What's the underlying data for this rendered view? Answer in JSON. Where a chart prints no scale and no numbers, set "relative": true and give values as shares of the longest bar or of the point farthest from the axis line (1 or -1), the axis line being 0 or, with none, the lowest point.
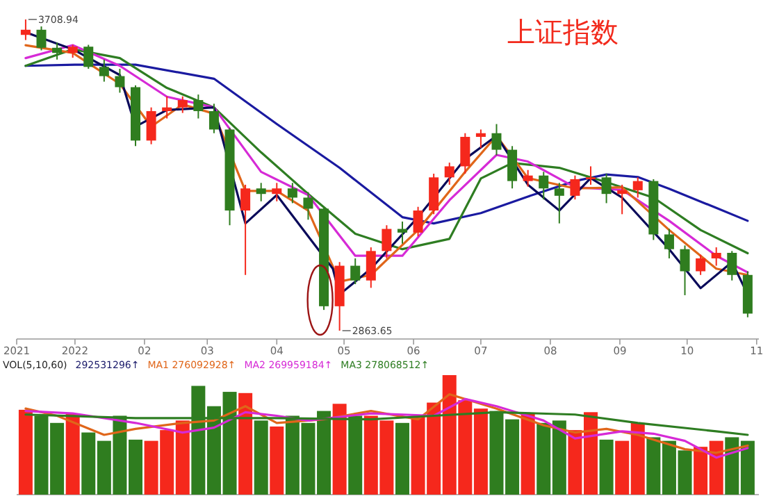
{
  "chart_data": [
    {
      "type": "candlestick",
      "title": "上证指数",
      "tick_labels": "x",
      "xlim": [
        "2021-12-06",
        "2022-11-02"
      ],
      "xticks": [
        {
          "value": "2021-12-06",
          "label": "2021"
        },
        {
          "value": "2022-01-01",
          "label": "2022"
        },
        {
          "value": "2022-02-01",
          "label": "02"
        },
        {
          "value": "2022-03-01",
          "label": "03"
        },
        {
          "value": "2022-04-01",
          "label": "04"
        },
        {
          "value": "2022-05-01",
          "label": "05"
        },
        {
          "value": "2022-06-01",
          "label": "06"
        },
        {
          "value": "2022-07-01",
          "label": "07"
        },
        {
          "value": "2022-08-01",
          "label": "08"
        },
        {
          "value": "2022-09-01",
          "label": "09"
        },
        {
          "value": "2022-10-01",
          "label": "10"
        },
        {
          "value": "2022-11-01",
          "label": "11"
        }
      ],
      "x": [
        "2021-12-10",
        "2021-12-17",
        "2021-12-24",
        "2021-12-31",
        "2022-01-07",
        "2022-01-14",
        "2022-01-21",
        "2022-01-28",
        "2022-02-04",
        "2022-02-11",
        "2022-02-18",
        "2022-02-25",
        "2022-03-04",
        "2022-03-11",
        "2022-03-18",
        "2022-03-25",
        "2022-04-01",
        "2022-04-08",
        "2022-04-15",
        "2022-04-22",
        "2022-04-29",
        "2022-05-06",
        "2022-05-13",
        "2022-05-20",
        "2022-05-27",
        "2022-06-03",
        "2022-06-10",
        "2022-06-17",
        "2022-06-24",
        "2022-07-01",
        "2022-07-08",
        "2022-07-15",
        "2022-07-22",
        "2022-07-29",
        "2022-08-05",
        "2022-08-12",
        "2022-08-19",
        "2022-08-26",
        "2022-09-02",
        "2022-09-09",
        "2022-09-16",
        "2022-09-23",
        "2022-09-30",
        "2022-10-07",
        "2022-10-14",
        "2022-10-21",
        "2022-10-28"
      ],
      "ohlc": [
        [
          3667,
          3708.94,
          3653,
          3681
        ],
        [
          3681,
          3690,
          3625,
          3632
        ],
        [
          3632,
          3646,
          3600,
          3618
        ],
        [
          3618,
          3640,
          3605,
          3635
        ],
        [
          3635,
          3640,
          3575,
          3580
        ],
        [
          3580,
          3600,
          3540,
          3555
        ],
        [
          3555,
          3575,
          3510,
          3525
        ],
        [
          3525,
          3530,
          3365,
          3380
        ],
        [
          3380,
          3470,
          3370,
          3460
        ],
        [
          3460,
          3500,
          3440,
          3470
        ],
        [
          3470,
          3500,
          3455,
          3490
        ],
        [
          3490,
          3505,
          3440,
          3460
        ],
        [
          3460,
          3480,
          3400,
          3410
        ],
        [
          3410,
          3415,
          3150,
          3190
        ],
        [
          3190,
          3260,
          3015,
          3250
        ],
        [
          3250,
          3265,
          3215,
          3235
        ],
        [
          3235,
          3265,
          3215,
          3250
        ],
        [
          3250,
          3265,
          3210,
          3225
        ],
        [
          3225,
          3240,
          3165,
          3195
        ],
        [
          3195,
          3200,
          2920,
          2930
        ],
        [
          2930,
          3050,
          2863.65,
          3040
        ],
        [
          3040,
          3060,
          2990,
          3000
        ],
        [
          3000,
          3090,
          2980,
          3080
        ],
        [
          3080,
          3150,
          3060,
          3140
        ],
        [
          3140,
          3160,
          3100,
          3130
        ],
        [
          3130,
          3200,
          3120,
          3190
        ],
        [
          3190,
          3290,
          3180,
          3280
        ],
        [
          3280,
          3320,
          3260,
          3310
        ],
        [
          3310,
          3400,
          3290,
          3390
        ],
        [
          3390,
          3410,
          3360,
          3400
        ],
        [
          3400,
          3424.84,
          3340,
          3355
        ],
        [
          3355,
          3365,
          3250,
          3270
        ],
        [
          3270,
          3300,
          3255,
          3285
        ],
        [
          3285,
          3295,
          3220,
          3250
        ],
        [
          3250,
          3265,
          3155,
          3230
        ],
        [
          3230,
          3285,
          3220,
          3275
        ],
        [
          3275,
          3310,
          3260,
          3280
        ],
        [
          3280,
          3290,
          3210,
          3235
        ],
        [
          3235,
          3260,
          3180,
          3245
        ],
        [
          3245,
          3280,
          3225,
          3270
        ],
        [
          3270,
          3275,
          3110,
          3125
        ],
        [
          3125,
          3140,
          3060,
          3085
        ],
        [
          3085,
          3095,
          2960,
          3025
        ],
        [
          3025,
          3070,
          3015,
          3060
        ],
        [
          3060,
          3090,
          3040,
          3075
        ],
        [
          3075,
          3080,
          3000,
          3015
        ],
        [
          3015,
          3025,
          2900,
          2910
        ]
      ],
      "colors": [
        "#f5281c",
        "#2f7d1f",
        "#2f7d1f",
        "#f5281c",
        "#2f7d1f",
        "#2f7d1f",
        "#2f7d1f",
        "#2f7d1f",
        "#f5281c",
        "#f5281c",
        "#f5281c",
        "#2f7d1f",
        "#2f7d1f",
        "#2f7d1f",
        "#f5281c",
        "#2f7d1f",
        "#f5281c",
        "#2f7d1f",
        "#2f7d1f",
        "#2f7d1f",
        "#f5281c",
        "#2f7d1f",
        "#f5281c",
        "#f5281c",
        "#2f7d1f",
        "#f5281c",
        "#f5281c",
        "#f5281c",
        "#f5281c",
        "#f5281c",
        "#2f7d1f",
        "#2f7d1f",
        "#f5281c",
        "#2f7d1f",
        "#2f7d1f",
        "#f5281c",
        "#f5281c",
        "#2f7d1f",
        "#f5281c",
        "#f5281c",
        "#2f7d1f",
        "#2f7d1f",
        "#2f7d1f",
        "#f5281c",
        "#f5281c",
        "#2f7d1f",
        "#2f7d1f"
      ],
      "series": [
        {
          "type": "line",
          "color": "#1a1aa0",
          "x": [
            "2021-12-10",
            "2022-01-01",
            "2022-01-28",
            "2022-03-04",
            "2022-04-01",
            "2022-04-29",
            "2022-05-27",
            "2022-06-10",
            "2022-07-01",
            "2022-07-22",
            "2022-08-12",
            "2022-08-26",
            "2022-09-09",
            "2022-09-23",
            "2022-10-14",
            "2022-10-28"
          ],
          "values": [
            3583,
            3586,
            3586,
            3548,
            3425,
            3306,
            3172,
            3155,
            3183,
            3228,
            3270,
            3288,
            3281,
            3249,
            3197,
            3162
          ]
        },
        {
          "type": "line",
          "color": "#2e7d22",
          "x": [
            "2021-12-10",
            "2021-12-31",
            "2022-01-21",
            "2022-02-11",
            "2022-03-04",
            "2022-03-25",
            "2022-04-15",
            "2022-05-06",
            "2022-05-27",
            "2022-06-17",
            "2022-07-01",
            "2022-07-15",
            "2022-08-05",
            "2022-08-26",
            "2022-09-16",
            "2022-10-07",
            "2022-10-28"
          ],
          "values": [
            3583,
            3628,
            3604,
            3523,
            3470,
            3348,
            3235,
            3127,
            3085,
            3113,
            3277,
            3319,
            3306,
            3267,
            3225,
            3137,
            3074
          ]
        },
        {
          "type": "line",
          "color": "#d62ad6",
          "x": [
            "2021-12-10",
            "2021-12-31",
            "2022-01-21",
            "2022-02-11",
            "2022-03-04",
            "2022-03-25",
            "2022-04-15",
            "2022-05-06",
            "2022-05-27",
            "2022-06-17",
            "2022-07-08",
            "2022-07-22",
            "2022-08-12",
            "2022-09-02",
            "2022-09-23",
            "2022-10-14",
            "2022-10-28"
          ],
          "values": [
            3604,
            3639,
            3583,
            3499,
            3470,
            3295,
            3232,
            3067,
            3067,
            3218,
            3341,
            3323,
            3253,
            3246,
            3162,
            3067,
            3022
          ]
        },
        {
          "type": "line",
          "color": "#e0661a",
          "x": [
            "2021-12-10",
            "2021-12-31",
            "2022-01-21",
            "2022-02-04",
            "2022-02-18",
            "2022-03-04",
            "2022-03-18",
            "2022-04-01",
            "2022-04-15",
            "2022-04-29",
            "2022-05-13",
            "2022-06-03",
            "2022-06-24",
            "2022-07-08",
            "2022-07-22",
            "2022-08-12",
            "2022-09-02",
            "2022-09-23",
            "2022-10-14",
            "2022-10-28"
          ],
          "values": [
            3639,
            3618,
            3534,
            3418,
            3478,
            3453,
            3243,
            3243,
            3190,
            2997,
            3015,
            3137,
            3295,
            3393,
            3278,
            3250,
            3253,
            3137,
            3032,
            3015
          ]
        },
        {
          "type": "line",
          "color": "#0a0a5a",
          "x": [
            "2021-12-10",
            "2021-12-31",
            "2022-01-21",
            "2022-01-28",
            "2022-02-11",
            "2022-03-04",
            "2022-03-18",
            "2022-04-01",
            "2022-04-26",
            "2022-04-29",
            "2022-05-13",
            "2022-06-03",
            "2022-06-24",
            "2022-07-08",
            "2022-07-22",
            "2022-08-05",
            "2022-08-19",
            "2022-09-02",
            "2022-09-23",
            "2022-10-07",
            "2022-10-21",
            "2022-10-28"
          ],
          "values": [
            3674,
            3628,
            3558,
            3418,
            3463,
            3470,
            3155,
            3232,
            3032,
            2962,
            3032,
            3172,
            3330,
            3393,
            3260,
            3190,
            3278,
            3225,
            3085,
            2979,
            3050,
            2962
          ]
        }
      ],
      "annotations": [
        {
          "text": "3708.94",
          "x": "2021-12-10",
          "y": 3708.94
        },
        {
          "text": "2863.65",
          "x": "2022-04-29",
          "y": 2863.65
        }
      ]
    },
    {
      "type": "bar",
      "relative": true,
      "tick_labels": false,
      "xlim": [
        "2021-12-06",
        "2022-11-02"
      ],
      "legend": "top left",
      "legend_title": "VOL(5,10,60)",
      "annotations": [
        "292531296↑"
      ],
      "x": [
        "2021-12-10",
        "2021-12-17",
        "2021-12-24",
        "2021-12-31",
        "2022-01-07",
        "2022-01-14",
        "2022-01-21",
        "2022-01-28",
        "2022-02-04",
        "2022-02-11",
        "2022-02-18",
        "2022-02-25",
        "2022-03-04",
        "2022-03-11",
        "2022-03-18",
        "2022-03-25",
        "2022-04-01",
        "2022-04-08",
        "2022-04-15",
        "2022-04-22",
        "2022-04-29",
        "2022-05-06",
        "2022-05-13",
        "2022-05-20",
        "2022-05-27",
        "2022-06-03",
        "2022-06-10",
        "2022-06-17",
        "2022-06-24",
        "2022-07-01",
        "2022-07-08",
        "2022-07-15",
        "2022-07-22",
        "2022-07-29",
        "2022-08-05",
        "2022-08-12",
        "2022-08-19",
        "2022-08-26",
        "2022-09-02",
        "2022-09-09",
        "2022-09-16",
        "2022-09-23",
        "2022-09-30",
        "2022-10-07",
        "2022-10-14",
        "2022-10-21",
        "2022-10-28"
      ],
      "series": [
        {
          "values": [
            0.71,
            0.66,
            0.6,
            0.68,
            0.52,
            0.45,
            0.66,
            0.46,
            0.45,
            0.54,
            0.62,
            0.91,
            0.74,
            0.86,
            0.85,
            0.62,
            0.57,
            0.66,
            0.6,
            0.7,
            0.76,
            0.66,
            0.66,
            0.62,
            0.6,
            0.66,
            0.77,
            1,
            0.79,
            0.72,
            0.7,
            0.63,
            0.68,
            0.6,
            0.62,
            0.54,
            0.69,
            0.46,
            0.45,
            0.6,
            0.48,
            0.45,
            0.37,
            0.4,
            0.45,
            0.48,
            0.45
          ],
          "colors": [
            "#f5281c",
            "#2f7d1f",
            "#2f7d1f",
            "#f5281c",
            "#2f7d1f",
            "#2f7d1f",
            "#2f7d1f",
            "#2f7d1f",
            "#f5281c",
            "#f5281c",
            "#f5281c",
            "#2f7d1f",
            "#2f7d1f",
            "#2f7d1f",
            "#f5281c",
            "#2f7d1f",
            "#f5281c",
            "#2f7d1f",
            "#2f7d1f",
            "#2f7d1f",
            "#f5281c",
            "#2f7d1f",
            "#f5281c",
            "#f5281c",
            "#2f7d1f",
            "#f5281c",
            "#f5281c",
            "#f5281c",
            "#f5281c",
            "#f5281c",
            "#2f7d1f",
            "#2f7d1f",
            "#f5281c",
            "#2f7d1f",
            "#2f7d1f",
            "#f5281c",
            "#f5281c",
            "#2f7d1f",
            "#f5281c",
            "#f5281c",
            "#2f7d1f",
            "#2f7d1f",
            "#2f7d1f",
            "#f5281c",
            "#f5281c",
            "#2f7d1f",
            "#2f7d1f"
          ]
        },
        {
          "name": "MA1 276092928↑",
          "type": "line",
          "color": "#e0661a",
          "x": [
            "2021-12-10",
            "2021-12-24",
            "2022-01-14",
            "2022-01-28",
            "2022-02-18",
            "2022-03-04",
            "2022-03-18",
            "2022-04-01",
            "2022-04-22",
            "2022-05-13",
            "2022-06-03",
            "2022-06-17",
            "2022-07-08",
            "2022-07-29",
            "2022-08-12",
            "2022-08-26",
            "2022-09-09",
            "2022-09-30",
            "2022-10-14",
            "2022-10-28"
          ],
          "values": [
            0.72,
            0.66,
            0.5,
            0.55,
            0.6,
            0.62,
            0.74,
            0.6,
            0.63,
            0.7,
            0.63,
            0.84,
            0.72,
            0.58,
            0.52,
            0.55,
            0.5,
            0.38,
            0.35,
            0.41
          ]
        },
        {
          "name": "MA2 269959184↑",
          "type": "line",
          "color": "#d62ad6",
          "x": [
            "2021-12-10",
            "2021-12-31",
            "2022-01-28",
            "2022-02-18",
            "2022-03-04",
            "2022-03-18",
            "2022-04-01",
            "2022-04-15",
            "2022-05-13",
            "2022-06-10",
            "2022-06-24",
            "2022-07-08",
            "2022-07-29",
            "2022-08-12",
            "2022-09-02",
            "2022-09-16",
            "2022-09-30",
            "2022-10-14",
            "2022-10-28"
          ],
          "values": [
            0.7,
            0.68,
            0.6,
            0.52,
            0.56,
            0.69,
            0.66,
            0.62,
            0.68,
            0.66,
            0.8,
            0.74,
            0.62,
            0.47,
            0.53,
            0.51,
            0.45,
            0.31,
            0.39
          ]
        },
        {
          "name": "MA3 278068512↑",
          "type": "line",
          "color": "#2e7d22",
          "x": [
            "2021-12-10",
            "2022-01-28",
            "2022-03-04",
            "2022-04-01",
            "2022-05-13",
            "2022-06-10",
            "2022-07-08",
            "2022-08-12",
            "2022-09-09",
            "2022-10-14",
            "2022-10-28"
          ],
          "values": [
            0.67,
            0.64,
            0.64,
            0.64,
            0.63,
            0.66,
            0.69,
            0.67,
            0.6,
            0.53,
            0.5
          ]
        }
      ]
    }
  ]
}
